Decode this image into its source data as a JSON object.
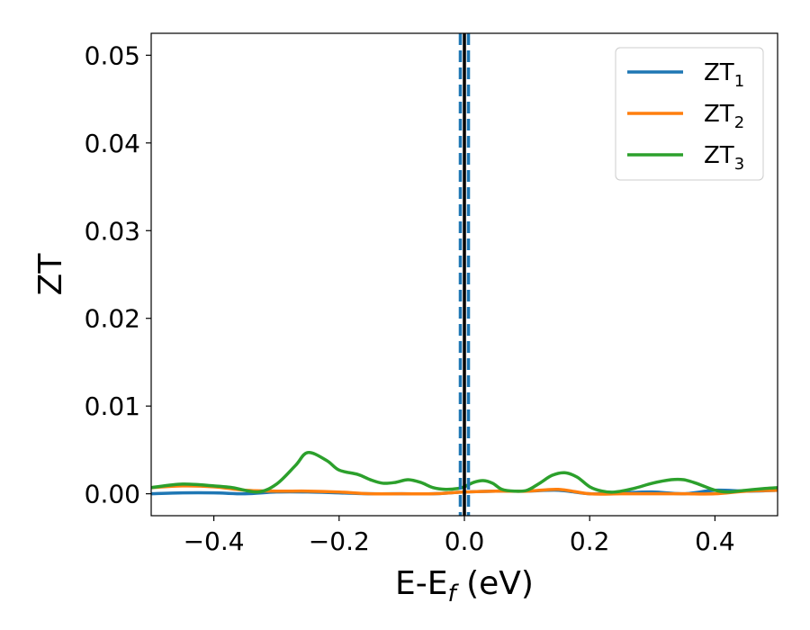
{
  "chart_data": {
    "type": "line",
    "xlabel_main": "E-E",
    "xlabel_sub": "f",
    "xlabel_unit": " (eV)",
    "ylabel": "ZT",
    "xlim": [
      -0.5,
      0.5
    ],
    "ylim": [
      -0.0025,
      0.0525
    ],
    "xticks": [
      {
        "value": -0.4,
        "label": "−0.4"
      },
      {
        "value": -0.2,
        "label": "−0.2"
      },
      {
        "value": 0.0,
        "label": "0.0"
      },
      {
        "value": 0.2,
        "label": "0.2"
      },
      {
        "value": 0.4,
        "label": "0.4"
      }
    ],
    "yticks": [
      {
        "value": 0.0,
        "label": "0.00"
      },
      {
        "value": 0.01,
        "label": "0.01"
      },
      {
        "value": 0.02,
        "label": "0.02"
      },
      {
        "value": 0.03,
        "label": "0.03"
      },
      {
        "value": 0.04,
        "label": "0.04"
      },
      {
        "value": 0.05,
        "label": "0.05"
      }
    ],
    "legend_position": "top-right",
    "grid": false,
    "vlines": [
      {
        "x": 0.0,
        "color": "#000000",
        "style": "solid"
      },
      {
        "x": -0.0065,
        "color": "#1f77b4",
        "style": "dashed"
      },
      {
        "x": 0.0065,
        "color": "#1f77b4",
        "style": "dashed"
      }
    ],
    "series": [
      {
        "name": "ZT",
        "sub": "1",
        "color": "#1f77b4",
        "x": [
          -0.5,
          -0.45,
          -0.4,
          -0.35,
          -0.3,
          -0.25,
          -0.2,
          -0.15,
          -0.1,
          -0.05,
          0.0,
          0.05,
          0.1,
          0.15,
          0.2,
          0.25,
          0.3,
          0.35,
          0.4,
          0.45,
          0.5
        ],
        "y": [
          0.0,
          0.0001,
          0.0001,
          0.0,
          0.0002,
          0.0002,
          0.0001,
          0.0,
          0.0,
          0.0,
          0.0002,
          0.0003,
          0.0003,
          0.0004,
          0.0,
          0.0001,
          0.0002,
          0.0,
          0.0004,
          0.0003,
          0.0004
        ]
      },
      {
        "name": "ZT",
        "sub": "2",
        "color": "#ff7f0e",
        "x": [
          -0.5,
          -0.45,
          -0.4,
          -0.35,
          -0.3,
          -0.25,
          -0.2,
          -0.15,
          -0.1,
          -0.05,
          0.0,
          0.05,
          0.1,
          0.15,
          0.2,
          0.25,
          0.3,
          0.35,
          0.4,
          0.45,
          0.5
        ],
        "y": [
          0.0007,
          0.0009,
          0.0008,
          0.0004,
          0.0003,
          0.0003,
          0.0002,
          0.0,
          0.0,
          0.0,
          0.0002,
          0.0003,
          0.0003,
          0.0005,
          0.0,
          0.0,
          0.0,
          0.0,
          0.0,
          0.0003,
          0.0004
        ]
      },
      {
        "name": "ZT",
        "sub": "3",
        "color": "#2ca02c",
        "x": [
          -0.5,
          -0.45,
          -0.4,
          -0.37,
          -0.33,
          -0.3,
          -0.27,
          -0.25,
          -0.22,
          -0.2,
          -0.17,
          -0.15,
          -0.13,
          -0.11,
          -0.09,
          -0.07,
          -0.05,
          -0.03,
          -0.01,
          0.0,
          0.015,
          0.03,
          0.045,
          0.06,
          0.08,
          0.1,
          0.12,
          0.14,
          0.16,
          0.18,
          0.2,
          0.22,
          0.24,
          0.27,
          0.3,
          0.33,
          0.35,
          0.37,
          0.4,
          0.42,
          0.45,
          0.48,
          0.5
        ],
        "y": [
          0.0007,
          0.0011,
          0.0009,
          0.0007,
          0.0002,
          0.0011,
          0.0032,
          0.0047,
          0.0038,
          0.0027,
          0.0022,
          0.0016,
          0.0012,
          0.0013,
          0.0016,
          0.0013,
          0.0007,
          0.0005,
          0.0006,
          0.0008,
          0.0013,
          0.0015,
          0.0012,
          0.0005,
          0.0003,
          0.0004,
          0.0012,
          0.0021,
          0.0024,
          0.0019,
          0.0008,
          0.0003,
          0.0002,
          0.0006,
          0.0012,
          0.0016,
          0.0016,
          0.0012,
          0.0004,
          0.0002,
          0.0004,
          0.0006,
          0.0007
        ]
      }
    ]
  }
}
